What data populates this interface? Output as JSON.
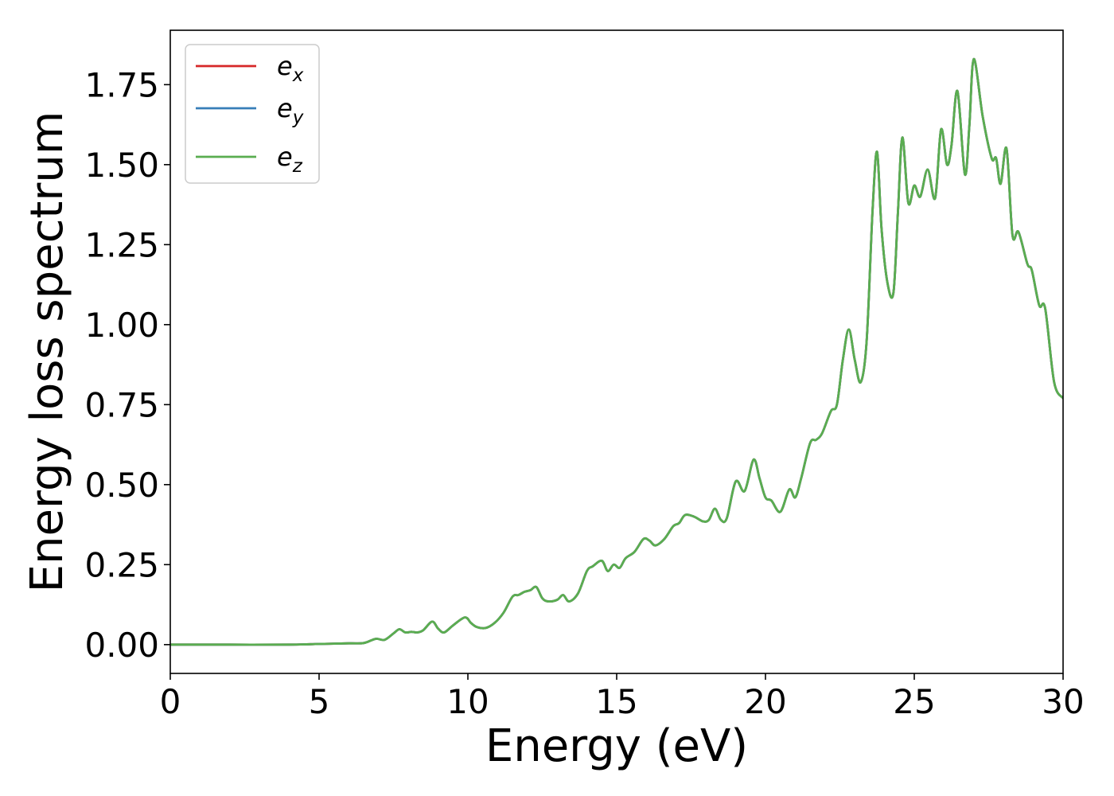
{
  "chart_data": {
    "type": "line",
    "title": "",
    "xlabel": "Energy (eV)",
    "ylabel": "Energy loss spectrum",
    "xlim": [
      0,
      30
    ],
    "ylim": [
      -0.09,
      1.92
    ],
    "x_ticks": [
      0,
      5,
      10,
      15,
      20,
      25,
      30
    ],
    "x_tick_labels": [
      "0",
      "5",
      "10",
      "15",
      "20",
      "25",
      "30"
    ],
    "y_ticks": [
      0,
      0.25,
      0.5,
      0.75,
      1.0,
      1.25,
      1.5,
      1.75
    ],
    "y_tick_labels": [
      "0.00",
      "0.25",
      "0.50",
      "0.75",
      "1.00",
      "1.25",
      "1.50",
      "1.75"
    ],
    "grid": false,
    "legend_position": "top-left",
    "series": [
      {
        "name": "e_x",
        "legend_base": "e",
        "legend_sub": "x",
        "color": "#d62728",
        "x": [
          0,
          2,
          4,
          5,
          6,
          6.5,
          6.9,
          7.2,
          7.5,
          7.7,
          7.9,
          8.1,
          8.3,
          8.5,
          8.8,
          9.0,
          9.2,
          9.5,
          9.9,
          10.1,
          10.3,
          10.6,
          10.9,
          11.2,
          11.5,
          11.7,
          11.9,
          12.1,
          12.3,
          12.5,
          12.7,
          13.0,
          13.2,
          13.4,
          13.7,
          14.0,
          14.2,
          14.5,
          14.7,
          14.9,
          15.1,
          15.3,
          15.6,
          15.9,
          16.1,
          16.3,
          16.6,
          16.9,
          17.1,
          17.3,
          17.6,
          17.9,
          18.1,
          18.3,
          18.5,
          18.7,
          19.0,
          19.3,
          19.6,
          19.8,
          20.0,
          20.2,
          20.5,
          20.8,
          21.0,
          21.2,
          21.5,
          21.7,
          21.9,
          22.2,
          22.4,
          22.6,
          22.8,
          23.0,
          23.2,
          23.4,
          23.6,
          23.75,
          23.9,
          24.1,
          24.3,
          24.45,
          24.6,
          24.8,
          25.0,
          25.2,
          25.45,
          25.7,
          25.9,
          26.1,
          26.25,
          26.45,
          26.7,
          26.85,
          27.0,
          27.3,
          27.6,
          27.75,
          27.9,
          28.1,
          28.3,
          28.5,
          28.8,
          28.95,
          29.2,
          29.4,
          29.7,
          30.0
        ],
        "y": [
          0,
          0,
          0,
          0.002,
          0.004,
          0.005,
          0.018,
          0.015,
          0.035,
          0.048,
          0.038,
          0.04,
          0.038,
          0.045,
          0.072,
          0.05,
          0.038,
          0.06,
          0.085,
          0.068,
          0.055,
          0.052,
          0.068,
          0.1,
          0.15,
          0.155,
          0.165,
          0.17,
          0.18,
          0.145,
          0.135,
          0.14,
          0.155,
          0.135,
          0.16,
          0.23,
          0.245,
          0.262,
          0.23,
          0.25,
          0.24,
          0.27,
          0.29,
          0.33,
          0.325,
          0.31,
          0.33,
          0.37,
          0.38,
          0.405,
          0.4,
          0.385,
          0.39,
          0.425,
          0.39,
          0.395,
          0.51,
          0.48,
          0.578,
          0.52,
          0.46,
          0.45,
          0.415,
          0.485,
          0.46,
          0.52,
          0.63,
          0.64,
          0.66,
          0.73,
          0.75,
          0.89,
          0.985,
          0.89,
          0.82,
          0.95,
          1.36,
          1.54,
          1.3,
          1.13,
          1.1,
          1.35,
          1.585,
          1.38,
          1.435,
          1.4,
          1.485,
          1.395,
          1.61,
          1.5,
          1.56,
          1.73,
          1.47,
          1.62,
          1.83,
          1.65,
          1.52,
          1.52,
          1.44,
          1.55,
          1.28,
          1.29,
          1.19,
          1.17,
          1.06,
          1.05,
          0.82,
          0.77
        ]
      },
      {
        "name": "e_y",
        "legend_base": "e",
        "legend_sub": "y",
        "color": "#377eb8",
        "x": [
          0,
          2,
          4,
          5,
          6,
          6.5,
          6.9,
          7.2,
          7.5,
          7.7,
          7.9,
          8.1,
          8.3,
          8.5,
          8.8,
          9.0,
          9.2,
          9.5,
          9.9,
          10.1,
          10.3,
          10.6,
          10.9,
          11.2,
          11.5,
          11.7,
          11.9,
          12.1,
          12.3,
          12.5,
          12.7,
          13.0,
          13.2,
          13.4,
          13.7,
          14.0,
          14.2,
          14.5,
          14.7,
          14.9,
          15.1,
          15.3,
          15.6,
          15.9,
          16.1,
          16.3,
          16.6,
          16.9,
          17.1,
          17.3,
          17.6,
          17.9,
          18.1,
          18.3,
          18.5,
          18.7,
          19.0,
          19.3,
          19.6,
          19.8,
          20.0,
          20.2,
          20.5,
          20.8,
          21.0,
          21.2,
          21.5,
          21.7,
          21.9,
          22.2,
          22.4,
          22.6,
          22.8,
          23.0,
          23.2,
          23.4,
          23.6,
          23.75,
          23.9,
          24.1,
          24.3,
          24.45,
          24.6,
          24.8,
          25.0,
          25.2,
          25.45,
          25.7,
          25.9,
          26.1,
          26.25,
          26.45,
          26.7,
          26.85,
          27.0,
          27.3,
          27.6,
          27.75,
          27.9,
          28.1,
          28.3,
          28.5,
          28.8,
          28.95,
          29.2,
          29.4,
          29.7,
          30.0
        ],
        "y": [
          0,
          0,
          0,
          0.002,
          0.004,
          0.005,
          0.018,
          0.015,
          0.035,
          0.048,
          0.038,
          0.04,
          0.038,
          0.045,
          0.072,
          0.05,
          0.038,
          0.06,
          0.085,
          0.068,
          0.055,
          0.052,
          0.068,
          0.1,
          0.15,
          0.155,
          0.165,
          0.17,
          0.18,
          0.145,
          0.135,
          0.14,
          0.155,
          0.135,
          0.16,
          0.23,
          0.245,
          0.262,
          0.23,
          0.25,
          0.24,
          0.27,
          0.29,
          0.33,
          0.325,
          0.31,
          0.33,
          0.37,
          0.38,
          0.405,
          0.4,
          0.385,
          0.39,
          0.425,
          0.39,
          0.395,
          0.51,
          0.48,
          0.578,
          0.52,
          0.46,
          0.45,
          0.415,
          0.485,
          0.46,
          0.52,
          0.63,
          0.64,
          0.66,
          0.73,
          0.75,
          0.89,
          0.985,
          0.89,
          0.82,
          0.95,
          1.36,
          1.54,
          1.3,
          1.13,
          1.1,
          1.35,
          1.585,
          1.38,
          1.435,
          1.4,
          1.485,
          1.395,
          1.61,
          1.5,
          1.56,
          1.73,
          1.47,
          1.62,
          1.83,
          1.65,
          1.52,
          1.52,
          1.44,
          1.55,
          1.28,
          1.29,
          1.19,
          1.17,
          1.06,
          1.05,
          0.82,
          0.77
        ]
      },
      {
        "name": "e_z",
        "legend_base": "e",
        "legend_sub": "z",
        "color": "#5aad50",
        "x": [
          0,
          2,
          4,
          5,
          6,
          6.5,
          6.9,
          7.2,
          7.5,
          7.7,
          7.9,
          8.1,
          8.3,
          8.5,
          8.8,
          9.0,
          9.2,
          9.5,
          9.9,
          10.1,
          10.3,
          10.6,
          10.9,
          11.2,
          11.5,
          11.7,
          11.9,
          12.1,
          12.3,
          12.5,
          12.7,
          13.0,
          13.2,
          13.4,
          13.7,
          14.0,
          14.2,
          14.5,
          14.7,
          14.9,
          15.1,
          15.3,
          15.6,
          15.9,
          16.1,
          16.3,
          16.6,
          16.9,
          17.1,
          17.3,
          17.6,
          17.9,
          18.1,
          18.3,
          18.5,
          18.7,
          19.0,
          19.3,
          19.6,
          19.8,
          20.0,
          20.2,
          20.5,
          20.8,
          21.0,
          21.2,
          21.5,
          21.7,
          21.9,
          22.2,
          22.4,
          22.6,
          22.8,
          23.0,
          23.2,
          23.4,
          23.6,
          23.75,
          23.9,
          24.1,
          24.3,
          24.45,
          24.6,
          24.8,
          25.0,
          25.2,
          25.45,
          25.7,
          25.9,
          26.1,
          26.25,
          26.45,
          26.7,
          26.85,
          27.0,
          27.3,
          27.6,
          27.75,
          27.9,
          28.1,
          28.3,
          28.5,
          28.8,
          28.95,
          29.2,
          29.4,
          29.7,
          30.0
        ],
        "y": [
          0,
          0,
          0,
          0.002,
          0.004,
          0.005,
          0.018,
          0.015,
          0.035,
          0.048,
          0.038,
          0.04,
          0.038,
          0.045,
          0.072,
          0.05,
          0.038,
          0.06,
          0.085,
          0.068,
          0.055,
          0.052,
          0.068,
          0.1,
          0.15,
          0.155,
          0.165,
          0.17,
          0.18,
          0.145,
          0.135,
          0.14,
          0.155,
          0.135,
          0.16,
          0.23,
          0.245,
          0.262,
          0.23,
          0.25,
          0.24,
          0.27,
          0.29,
          0.33,
          0.325,
          0.31,
          0.33,
          0.37,
          0.38,
          0.405,
          0.4,
          0.385,
          0.39,
          0.425,
          0.39,
          0.395,
          0.51,
          0.48,
          0.578,
          0.52,
          0.46,
          0.45,
          0.415,
          0.485,
          0.46,
          0.52,
          0.63,
          0.64,
          0.66,
          0.73,
          0.75,
          0.89,
          0.985,
          0.89,
          0.82,
          0.95,
          1.36,
          1.54,
          1.3,
          1.13,
          1.1,
          1.35,
          1.585,
          1.38,
          1.435,
          1.4,
          1.485,
          1.395,
          1.61,
          1.5,
          1.56,
          1.73,
          1.47,
          1.62,
          1.83,
          1.65,
          1.52,
          1.52,
          1.44,
          1.55,
          1.28,
          1.29,
          1.19,
          1.17,
          1.06,
          1.05,
          0.82,
          0.77
        ]
      }
    ]
  }
}
